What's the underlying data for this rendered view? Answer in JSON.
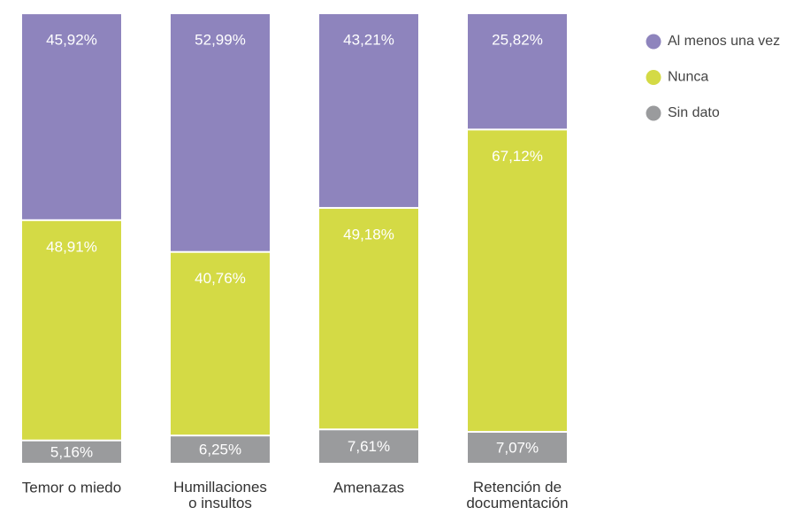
{
  "chart_data": {
    "type": "stacked-bar",
    "categories": [
      "Temor o miedo",
      "Humillaciones o insultos",
      "Amenazas",
      "Retención de documentación"
    ],
    "series": [
      {
        "name": "Al menos una vez",
        "color": "#8e84bd",
        "values": [
          45.92,
          52.99,
          43.21,
          25.82
        ],
        "value_labels": [
          "45,92%",
          "52,99%",
          "43,21%",
          "25,82%"
        ]
      },
      {
        "name": "Nunca",
        "color": "#d4da45",
        "values": [
          48.91,
          40.76,
          49.18,
          67.12
        ],
        "value_labels": [
          "48,91%",
          "40,76%",
          "49,18%",
          "67,12%"
        ]
      },
      {
        "name": "Sin dato",
        "color": "#9a9b9d",
        "values": [
          5.16,
          6.25,
          7.61,
          7.07
        ],
        "value_labels": [
          "5,16%",
          "6,25%",
          "7,61%",
          "7,07%"
        ]
      }
    ],
    "legend": "top-right"
  }
}
